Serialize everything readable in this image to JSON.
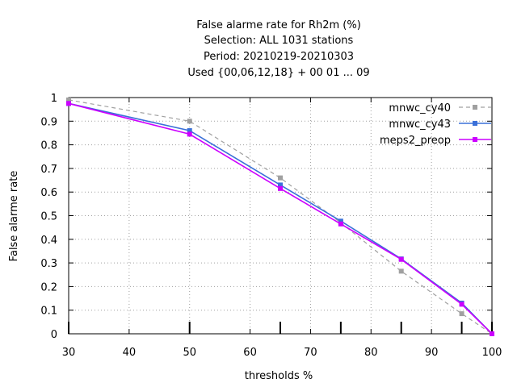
{
  "chart_data": {
    "type": "line",
    "title_lines": [
      "False alarme rate  for Rh2m (%)",
      "Selection: ALL    1031 stations",
      "Period: 20210219-20210303",
      "Used {00,06,12,18} + 00 01 ... 09"
    ],
    "xlabel": "thresholds %",
    "ylabel": "False alarme rate",
    "xlim": [
      30,
      100
    ],
    "ylim": [
      0,
      1
    ],
    "x_ticks": [
      "30",
      "40",
      "50",
      "60",
      "70",
      "80",
      "90",
      "100"
    ],
    "y_ticks": [
      "0",
      "0.1",
      "0.2",
      "0.3",
      "0.4",
      "0.5",
      "0.6",
      "0.7",
      "0.8",
      "0.9",
      "1"
    ],
    "threshold_marks": [
      30,
      50,
      65,
      75,
      85,
      95,
      100
    ],
    "grid": true,
    "legend_position": "top-right",
    "series": [
      {
        "name": "mnwc_cy40",
        "color": "#a0a0a0",
        "style": "dashed",
        "x": [
          30,
          50,
          65,
          75,
          85,
          95,
          100
        ],
        "y": [
          0.99,
          0.9,
          0.66,
          0.47,
          0.265,
          0.085,
          0.0
        ]
      },
      {
        "name": "mnwc_cy43",
        "color": "#3a70d8",
        "style": "solid",
        "x": [
          30,
          50,
          65,
          75,
          85,
          95,
          100
        ],
        "y": [
          0.975,
          0.86,
          0.63,
          0.477,
          0.317,
          0.13,
          0.0
        ]
      },
      {
        "name": "meps2_preop",
        "color": "#cc00ff",
        "style": "solid",
        "x": [
          30,
          50,
          65,
          75,
          85,
          95,
          100
        ],
        "y": [
          0.975,
          0.845,
          0.615,
          0.465,
          0.315,
          0.125,
          0.0
        ]
      }
    ]
  }
}
